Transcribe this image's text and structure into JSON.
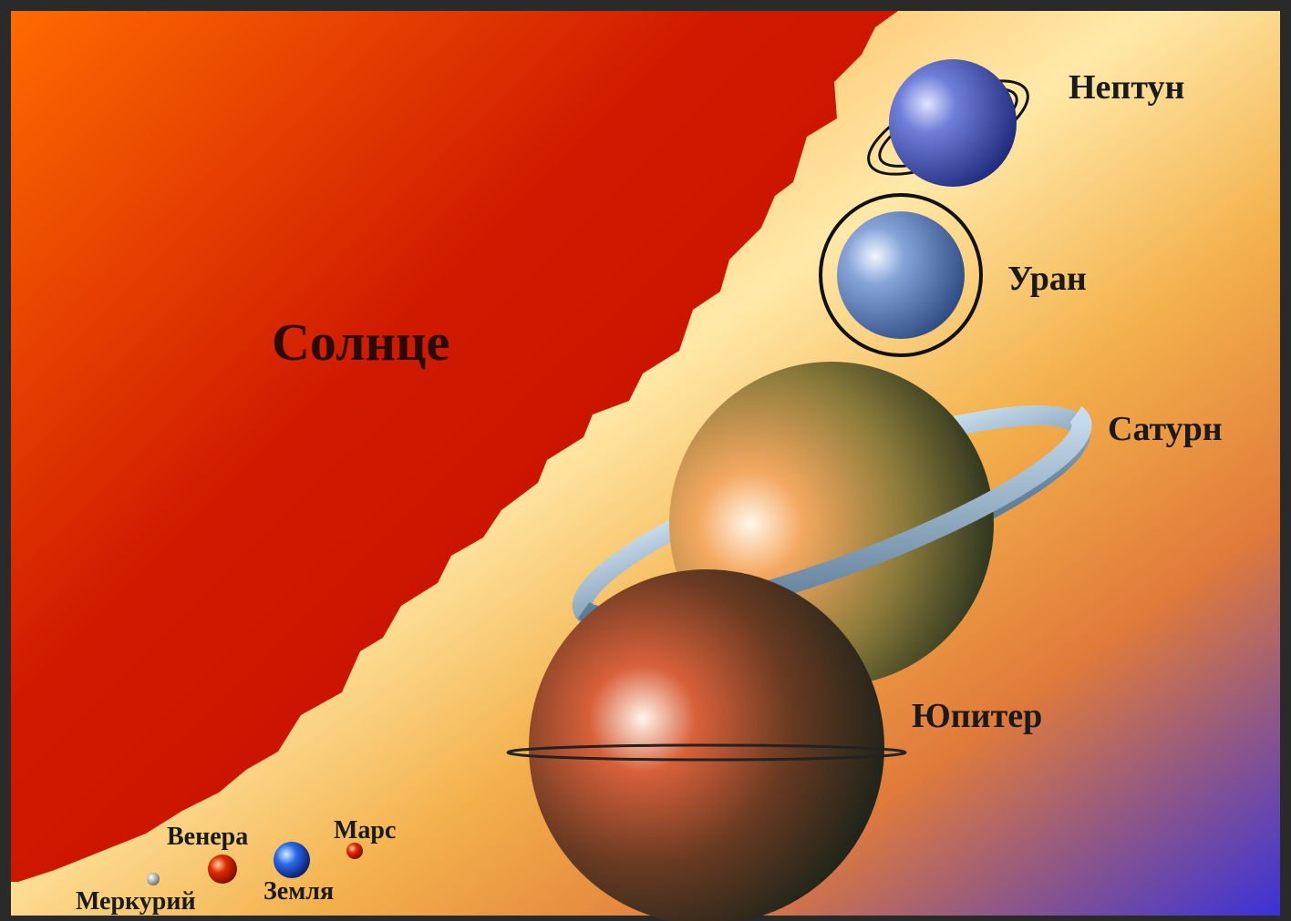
{
  "bodies": [
    {
      "label": "Солнце"
    },
    {
      "label": "Нептун"
    },
    {
      "label": "Уран"
    },
    {
      "label": "Сатурн"
    },
    {
      "label": "Юпитер"
    },
    {
      "label": "Венера"
    },
    {
      "label": "Марс"
    },
    {
      "label": "Меркурий"
    },
    {
      "label": "Земля"
    }
  ]
}
